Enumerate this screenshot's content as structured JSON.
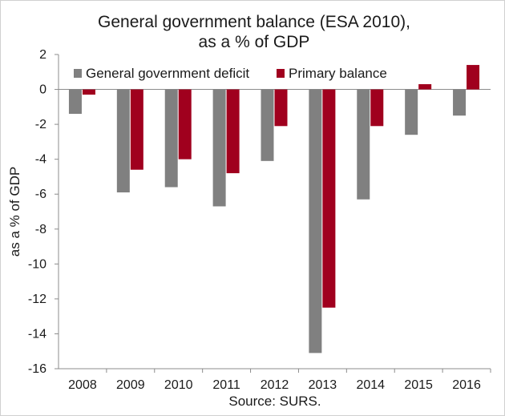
{
  "chart_data": {
    "type": "bar",
    "title_lines": [
      "General government balance (ESA 2010),",
      "as a % of GDP"
    ],
    "ylabel": "as a % of GDP",
    "xlabel": "",
    "source": "Source: SURS.",
    "categories": [
      "2008",
      "2009",
      "2010",
      "2011",
      "2012",
      "2013",
      "2014",
      "2015",
      "2016"
    ],
    "series": [
      {
        "name": "General government deficit",
        "color": "#808080",
        "values": [
          -1.4,
          -5.9,
          -5.6,
          -6.7,
          -4.1,
          -15.1,
          -6.3,
          -2.6,
          -1.5
        ]
      },
      {
        "name": "Primary balance",
        "color": "#a0001e",
        "values": [
          -0.3,
          -4.6,
          -4.0,
          -4.8,
          -2.1,
          -12.5,
          -2.1,
          0.3,
          1.4
        ]
      }
    ],
    "ylim": [
      -16,
      2
    ],
    "yticks": [
      "2",
      "0",
      "-2",
      "-4",
      "-6",
      "-8",
      "-10",
      "-12",
      "-14",
      "-16"
    ],
    "legend_position": "top",
    "grid": false
  }
}
